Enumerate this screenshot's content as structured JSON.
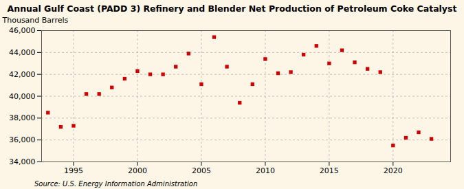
{
  "chart_data": {
    "type": "scatter",
    "title": "Annual Gulf Coast (PADD 3) Refinery and Blender Net Production of Petroleum Coke Catalyst",
    "ylabel": "Thousand Barrels",
    "source": "Source: U.S. Energy Information Administration",
    "x": [
      1993,
      1994,
      1995,
      1996,
      1997,
      1998,
      1999,
      2000,
      2001,
      2002,
      2003,
      2004,
      2005,
      2006,
      2007,
      2008,
      2009,
      2010,
      2011,
      2012,
      2013,
      2014,
      2015,
      2016,
      2017,
      2018,
      2019,
      2020,
      2021,
      2022,
      2023
    ],
    "values": [
      38500,
      37200,
      37300,
      40200,
      40200,
      40800,
      41600,
      42300,
      42000,
      42000,
      42700,
      43900,
      41100,
      45400,
      42700,
      39400,
      41100,
      43400,
      42100,
      42200,
      43800,
      44600,
      43000,
      44200,
      43100,
      42500,
      42200,
      35500,
      36200,
      36700,
      36100
    ],
    "color": "#cc0000",
    "marker": "square",
    "xlim": [
      1992.5,
      2024.5
    ],
    "xticks": [
      1995,
      2000,
      2005,
      2010,
      2015,
      2020
    ],
    "ylim": [
      34000,
      46000
    ],
    "yticks": [
      {
        "value": 34000,
        "label": "34,000"
      },
      {
        "value": 36000,
        "label": "36,000"
      },
      {
        "value": 38000,
        "label": "38,000"
      },
      {
        "value": 40000,
        "label": "40,000"
      },
      {
        "value": 42000,
        "label": "42,000"
      },
      {
        "value": 44000,
        "label": "44,000"
      },
      {
        "value": 46000,
        "label": "46,000"
      }
    ],
    "grid": true
  }
}
